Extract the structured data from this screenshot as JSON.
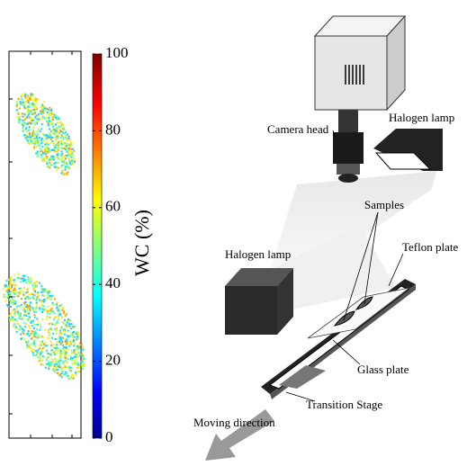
{
  "colorbar": {
    "label": "WC (%)",
    "lim": [
      0,
      100
    ],
    "ticks": [
      0,
      20,
      40,
      60,
      80,
      100
    ]
  },
  "labels": {
    "camera_head": "Camera head",
    "halogen_lamp_top": "Halogen lamp",
    "samples": "Samples",
    "teflon_plate": "Teflon plate",
    "halogen_lamp_left": "Halogen lamp",
    "glass_plate": "Glass plate",
    "transition_stage": "Transition Stage",
    "moving_direction": "Moving direction"
  }
}
